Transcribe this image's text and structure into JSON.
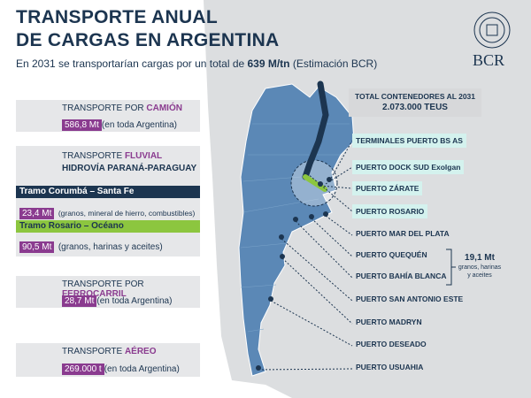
{
  "header": {
    "title_lines": [
      "TRANSPORTE ANUAL",
      "DE CARGAS EN ARGENTINA"
    ],
    "subtitle": [
      "En 2031 se transportarían cargas por un total de ",
      "639 M/tn",
      " (Estimación BCR)"
    ],
    "logo": "BCR"
  },
  "panels": {
    "camion": {
      "label": "TRANSPORTE POR ",
      "mode": "CAMIÓN",
      "value": "586,8 Mt",
      "note": "(en toda Argentina)"
    },
    "fluvial": {
      "label": "TRANSPORTE ",
      "mode": "FLUVIAL",
      "route": "HIDROVÍA PARANÁ-PARAGUAY",
      "tramos": [
        {
          "name": "Tramo Corumbá – Santa Fe",
          "value": "23,4 Mt",
          "note": "(granos, mineral de hierro, combustibles)"
        },
        {
          "name": "Tramo Rosario – Océano",
          "value": "90,5 Mt",
          "note": "(granos, harinas y aceites)"
        }
      ]
    },
    "ferrocarril": {
      "label": "TRANSPORTE POR ",
      "mode": "FERROCARRIL",
      "value": "28,7 Mt",
      "note": "(en toda Argentina)"
    },
    "aereo": {
      "label": "TRANSPORTE ",
      "mode": "AÉREO",
      "value": "269.000 t",
      "note": "(en toda Argentina)"
    }
  },
  "containers": {
    "title": "TOTAL CONTENEDORES AL 2031",
    "value": "2.073.000 TEUS"
  },
  "ports": [
    "TERMINALES PUERTO BS AS",
    "PUERTO DOCK SUD Exolgan",
    "PUERTO ZÁRATE",
    "PUERTO ROSARIO",
    "PUERTO MAR DEL PLATA",
    "PUERTO QUEQUÉN",
    "PUERTO BAHÍA BLANCA",
    "PUERTO SAN ANTONIO ESTE",
    "PUERTO MADRYN",
    "PUERTO DESEADO",
    "PUERTO USUAHIA"
  ],
  "ports_note": {
    "value": "19,1 Mt",
    "lines": [
      "granos, harinas",
      "y aceites"
    ]
  }
}
